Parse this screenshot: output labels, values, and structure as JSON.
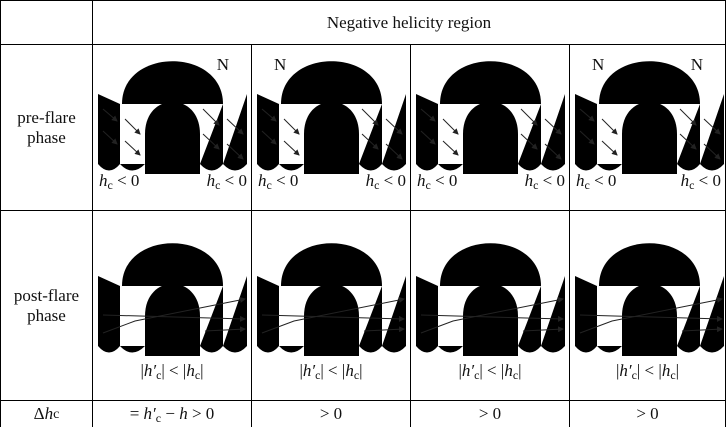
{
  "header": {
    "title": "Negative helicity region"
  },
  "rows": [
    {
      "label": "pre-flare phase",
      "cells": [
        {
          "n_right": "N",
          "left_formula": [
            {
              "text": "h",
              "italic": true
            },
            {
              "text": "c",
              "sub": true
            },
            {
              "text": " < 0"
            }
          ],
          "right_formula": [
            {
              "text": "h",
              "italic": true
            },
            {
              "text": "c",
              "sub": true
            },
            {
              "text": " < 0"
            }
          ]
        },
        {
          "n_left": "N",
          "left_formula": [
            {
              "text": "h",
              "italic": true
            },
            {
              "text": "c",
              "sub": true
            },
            {
              "text": " < 0"
            }
          ],
          "right_formula": [
            {
              "text": "h",
              "italic": true
            },
            {
              "text": "c",
              "sub": true
            },
            {
              "text": " < 0"
            }
          ]
        },
        {
          "left_formula": [
            {
              "text": "h",
              "italic": true
            },
            {
              "text": "c",
              "sub": true
            },
            {
              "text": " < 0"
            }
          ],
          "right_formula": [
            {
              "text": "h",
              "italic": true
            },
            {
              "text": "c",
              "sub": true
            },
            {
              "text": " < 0"
            }
          ]
        },
        {
          "n_left": "N",
          "n_right": "N",
          "left_formula": [
            {
              "text": "h",
              "italic": true
            },
            {
              "text": "c",
              "sub": true
            },
            {
              "text": " < 0"
            }
          ],
          "right_formula": [
            {
              "text": "h",
              "italic": true
            },
            {
              "text": "c",
              "sub": true
            },
            {
              "text": " < 0"
            }
          ]
        }
      ]
    },
    {
      "label": "post-flare phase",
      "cells": [
        {
          "formula": [
            {
              "text": "|"
            },
            {
              "text": "h′",
              "italic": true
            },
            {
              "text": "c",
              "sub": true
            },
            {
              "text": "| < |"
            },
            {
              "text": "h",
              "italic": true
            },
            {
              "text": "c",
              "sub": true
            },
            {
              "text": "|"
            }
          ]
        },
        {
          "formula": [
            {
              "text": "|"
            },
            {
              "text": "h′",
              "italic": true
            },
            {
              "text": "c",
              "sub": true
            },
            {
              "text": "| < |"
            },
            {
              "text": "h",
              "italic": true
            },
            {
              "text": "c",
              "sub": true
            },
            {
              "text": "|"
            }
          ]
        },
        {
          "formula": [
            {
              "text": "|"
            },
            {
              "text": "h′",
              "italic": true
            },
            {
              "text": "c",
              "sub": true
            },
            {
              "text": "| < |"
            },
            {
              "text": "h",
              "italic": true
            },
            {
              "text": "c",
              "sub": true
            },
            {
              "text": "|"
            }
          ]
        },
        {
          "formula": [
            {
              "text": "|"
            },
            {
              "text": "h′",
              "italic": true
            },
            {
              "text": "c",
              "sub": true
            },
            {
              "text": "| < |"
            },
            {
              "text": "h",
              "italic": true
            },
            {
              "text": "c",
              "sub": true
            },
            {
              "text": "|"
            }
          ]
        }
      ]
    },
    {
      "label_parts": [
        {
          "text": "Δ"
        },
        {
          "text": "h",
          "italic": true
        },
        {
          "text": "c",
          "sub": true
        }
      ],
      "cells": [
        {
          "formula": [
            {
              "text": "= "
            },
            {
              "text": "h′",
              "italic": true
            },
            {
              "text": "c",
              "sub": true
            },
            {
              "text": " − "
            },
            {
              "text": "h",
              "italic": true
            },
            {
              "text": " > 0"
            }
          ]
        },
        {
          "formula": [
            {
              "text": "> 0"
            }
          ]
        },
        {
          "formula": [
            {
              "text": "> 0"
            }
          ]
        },
        {
          "formula": [
            {
              "text": "> 0"
            }
          ]
        }
      ]
    }
  ]
}
